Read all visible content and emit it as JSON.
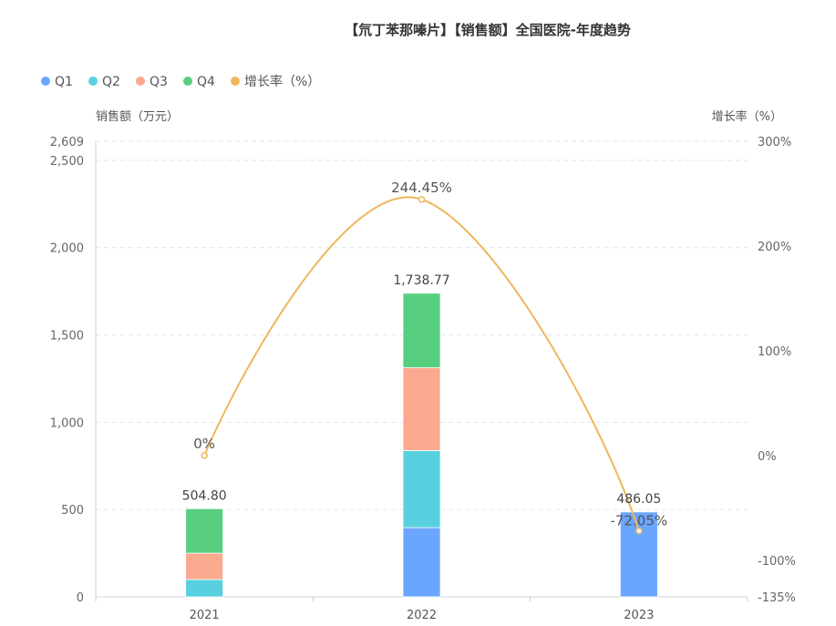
{
  "chart_data": {
    "type": "bar",
    "title": "【氘丁苯那嗪片】【销售额】全国医院-年度趋势",
    "categories": [
      "2021",
      "2022",
      "2023"
    ],
    "stacked": true,
    "series": [
      {
        "name": "Q1",
        "type": "bar",
        "color": "#6aa6ff",
        "values": [
          0,
          396,
          486.05
        ]
      },
      {
        "name": "Q2",
        "type": "bar",
        "color": "#58d0df",
        "values": [
          99,
          442,
          0
        ]
      },
      {
        "name": "Q3",
        "type": "bar",
        "color": "#fba98f",
        "values": [
          151,
          474,
          0
        ]
      },
      {
        "name": "Q4",
        "type": "bar",
        "color": "#58cf7e",
        "values": [
          254.8,
          426.77,
          0
        ]
      },
      {
        "name": "增长率（%）",
        "type": "line",
        "axis": "right",
        "color": "#f0b75a",
        "values": [
          0,
          244.45,
          -72.05
        ]
      }
    ],
    "totals": [
      "504.80",
      "1,738.77",
      "486.05"
    ],
    "line_labels": [
      "0%",
      "244.45%",
      "-72.05%"
    ],
    "ylabel": "销售额（万元）",
    "y2label": "增长率（%）",
    "ylim": [
      0,
      2609
    ],
    "yticks": [
      "0",
      "500",
      "1,000",
      "1,500",
      "2,000",
      "2,500",
      "2,609"
    ],
    "ytick_values": [
      0,
      500,
      1000,
      1500,
      2000,
      2500,
      2609
    ],
    "y2lim": [
      -135,
      300
    ],
    "y2ticks": [
      "-135%",
      "-100%",
      "0%",
      "100%",
      "200%",
      "300%"
    ],
    "y2tick_values": [
      -135,
      -100,
      0,
      100,
      200,
      300
    ],
    "grid": true,
    "legend": "top-left"
  }
}
